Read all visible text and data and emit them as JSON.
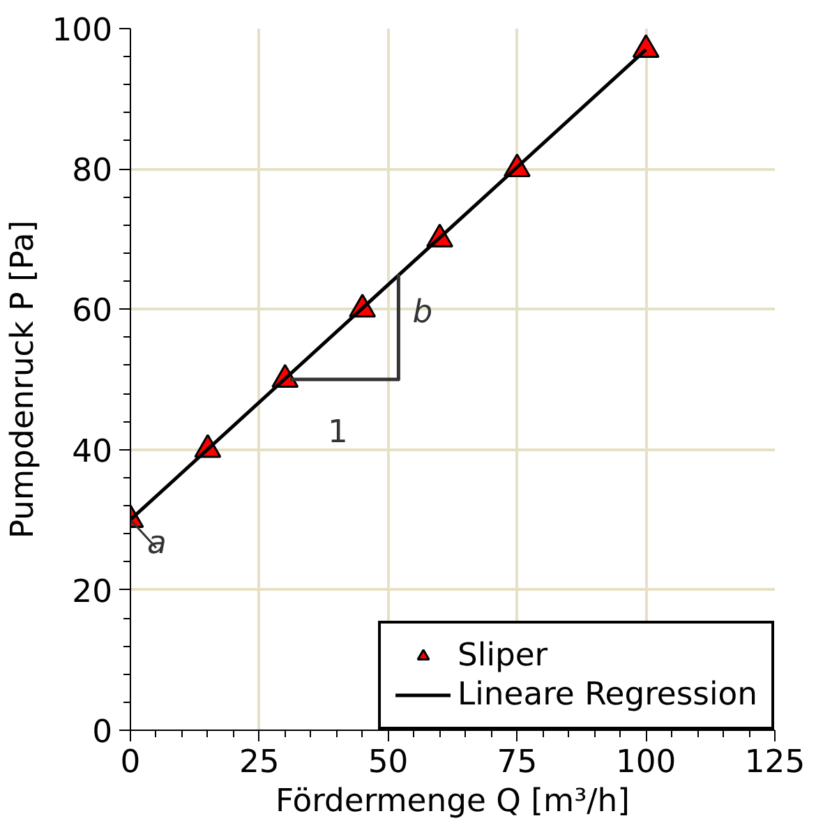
{
  "chart_data": {
    "type": "scatter",
    "xlabel": "Fördermenge Q [m³/h]",
    "ylabel": "Pumpdenruck P [Pa]",
    "xlim": [
      0,
      125
    ],
    "xticks": [
      0,
      25,
      50,
      75,
      100,
      125
    ],
    "ylim": [
      0,
      100
    ],
    "yticks": [
      0,
      20,
      40,
      60,
      80,
      100
    ],
    "grid": true,
    "legend": "bottom right",
    "series": [
      {
        "name": "Sliper",
        "marker": "triangle",
        "color": "#ff0000",
        "x": [
          0,
          15,
          30,
          45,
          60,
          75,
          100
        ],
        "values": [
          30,
          40,
          50,
          60,
          70,
          80,
          97
        ]
      },
      {
        "name": "Lineare Regression",
        "type": "line",
        "color": "#000000",
        "x": [
          0,
          100
        ],
        "values": [
          30,
          97
        ]
      },
      {
        "type": "line",
        "color": "#333333",
        "x": [
          31,
          52,
          52
        ],
        "values": [
          50,
          50,
          65
        ]
      }
    ],
    "annotations": [
      {
        "text": "a",
        "x": 0,
        "y": 30
      },
      {
        "text": "1",
        "x": 41,
        "y": 50
      },
      {
        "text": "b",
        "x": 52,
        "y": 58
      }
    ]
  }
}
